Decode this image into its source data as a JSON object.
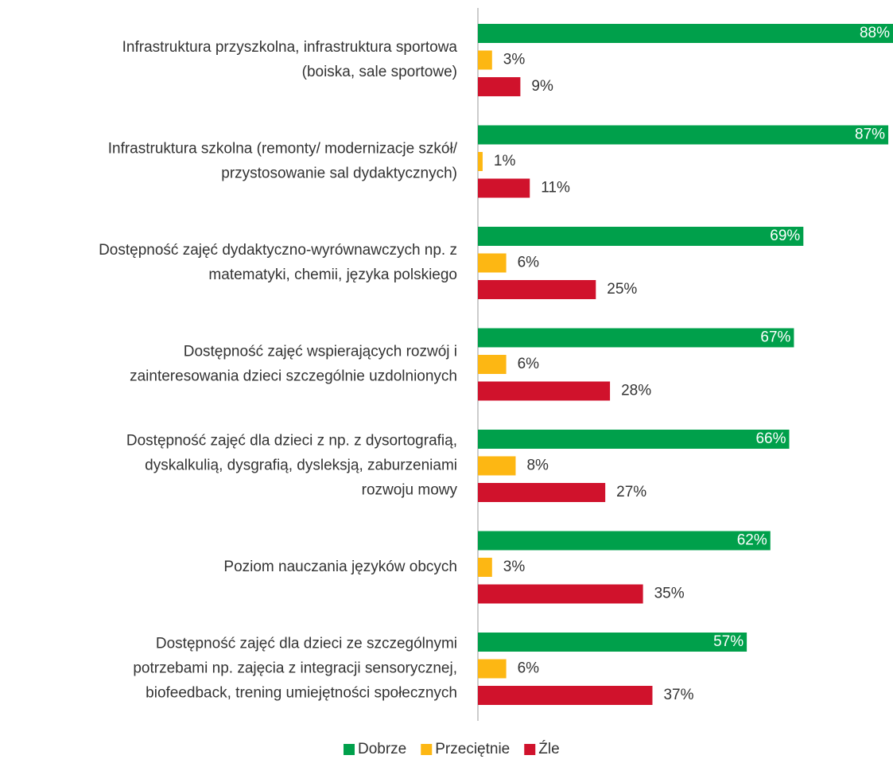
{
  "chart_data": {
    "type": "bar",
    "orientation": "horizontal",
    "categories": [
      [
        "Infrastruktura przyszkolna, infrastruktura sportowa",
        "(boiska, sale sportowe)"
      ],
      [
        "Infrastruktura szkolna (remonty/ modernizacje szkół/",
        "przystosowanie sal dydaktycznych)"
      ],
      [
        "Dostępność zajęć dydaktyczno-wyrównawczych np. z",
        "matematyki, chemii, języka polskiego"
      ],
      [
        "Dostępność zajęć wspierających rozwój i",
        "zainteresowania dzieci szczególnie uzdolnionych"
      ],
      [
        "Dostępność zajęć dla dzieci z np. z dysortografią,",
        "dyskalkulią, dysgrafią, dysleksją, zaburzeniami",
        "rozwoju mowy"
      ],
      [
        "Poziom nauczania języków obcych"
      ],
      [
        "Dostępność zajęć dla dzieci ze szczególnymi",
        "potrzebami np. zajęcia z integracji sensorycznej,",
        "biofeedback, trening umiejętności społecznych"
      ]
    ],
    "series": [
      {
        "name": "Dobrze",
        "color": "#00a04b",
        "values": [
          88,
          87,
          69,
          67,
          66,
          62,
          57
        ],
        "value_labels": [
          "88%",
          "87%",
          "69%",
          "67%",
          "66%",
          "62%",
          "57%"
        ]
      },
      {
        "name": "Przeciętnie",
        "color": "#fdb713",
        "values": [
          3,
          1,
          6,
          6,
          8,
          3,
          6
        ],
        "value_labels": [
          "3%",
          "1%",
          "6%",
          "6%",
          "8%",
          "3%",
          "6%"
        ]
      },
      {
        "name": "Źle",
        "color": "#d0122c",
        "values": [
          9,
          11,
          25,
          28,
          27,
          35,
          37
        ],
        "value_labels": [
          "9%",
          "11%",
          "25%",
          "28%",
          "27%",
          "35%",
          "37%"
        ]
      }
    ],
    "xlim": [
      0,
      88
    ],
    "legend": "bottom"
  }
}
